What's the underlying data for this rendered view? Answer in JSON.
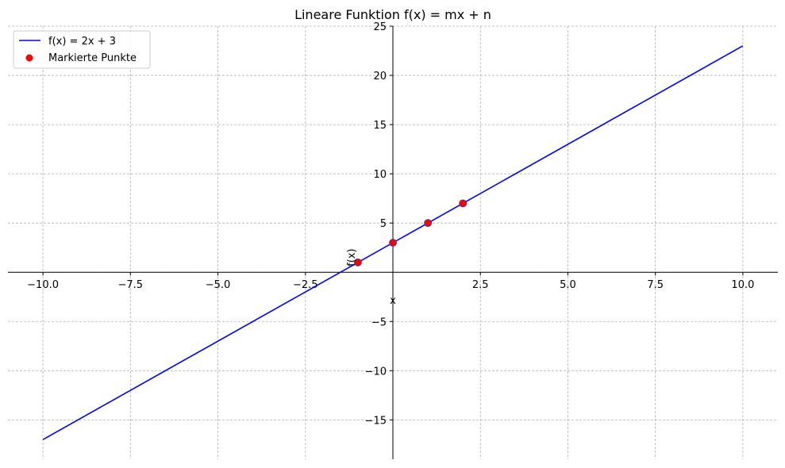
{
  "chart_data": {
    "type": "line",
    "title": "Lineare Funktion f(x) = mx + n",
    "xlabel": "x",
    "ylabel": "f(x)",
    "xlim": [
      -11,
      11
    ],
    "ylim": [
      -19,
      25
    ],
    "grid": true,
    "legend_position": "top-left",
    "xticks": [
      -10,
      -7.5,
      -5,
      -2.5,
      2.5,
      5,
      7.5,
      10
    ],
    "xtick_labels": [
      "−10.0",
      "−7.5",
      "−5.0",
      "−2.5",
      "2.5",
      "5.0",
      "7.5",
      "10.0"
    ],
    "yticks": [
      -15,
      -10,
      -5,
      5,
      10,
      15,
      20,
      25
    ],
    "ytick_labels": [
      "−15",
      "−10",
      "−5",
      "5",
      "10",
      "15",
      "20",
      "25"
    ],
    "series": [
      {
        "name": "f(x) = 2x + 3",
        "kind": "line",
        "color": "#0000ff",
        "x": [
          -10,
          10
        ],
        "y": [
          -17,
          23
        ]
      },
      {
        "name": "Markierte Punkte",
        "kind": "scatter",
        "color": "#ff0000",
        "edge_color": "#3333aa",
        "x": [
          -1,
          0,
          1,
          2
        ],
        "y": [
          1,
          3,
          5,
          7
        ]
      }
    ]
  }
}
